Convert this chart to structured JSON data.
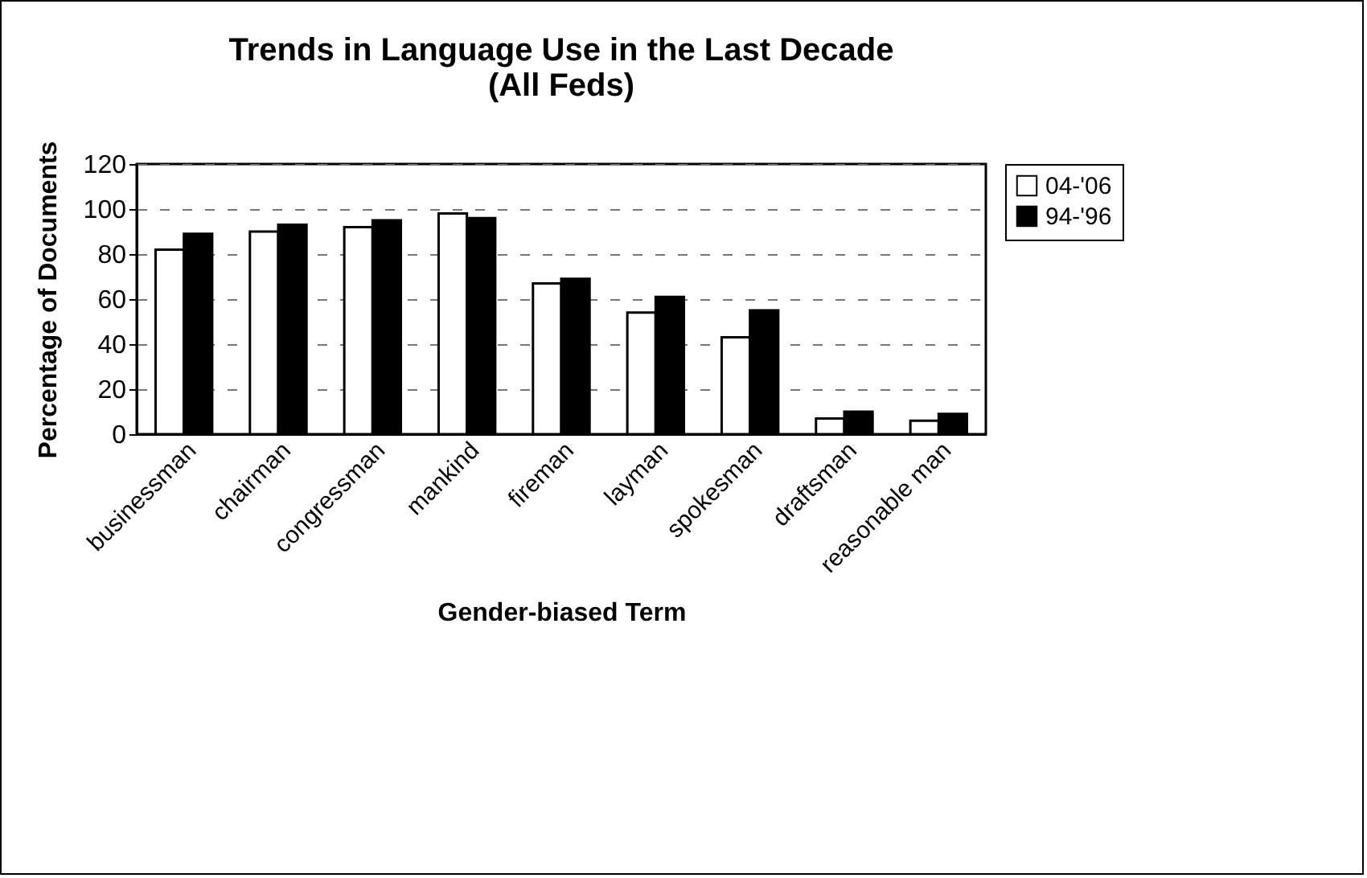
{
  "chart_data": {
    "type": "bar",
    "title": [
      "Trends in Language Use in the Last Decade",
      "(All Feds)"
    ],
    "xlabel": "Gender-biased Term",
    "ylabel": "Percentage of Documents",
    "categories": [
      "businessman",
      "chairman",
      "congressman",
      "mankind",
      "fireman",
      "layman",
      "spokesman",
      "draftsman",
      "reasonable man"
    ],
    "series": [
      {
        "name": "04-'06",
        "color": "#ffffff",
        "values": [
          82,
          90,
          92,
          98,
          67,
          54,
          43,
          7,
          6
        ]
      },
      {
        "name": "94-'96",
        "color": "#000000",
        "values": [
          89,
          93,
          95,
          96,
          69,
          61,
          55,
          10,
          9
        ]
      }
    ],
    "ylim": [
      0,
      120
    ],
    "yticks": [
      0,
      20,
      40,
      60,
      80,
      100,
      120
    ],
    "grid": "y",
    "legend": "right"
  }
}
